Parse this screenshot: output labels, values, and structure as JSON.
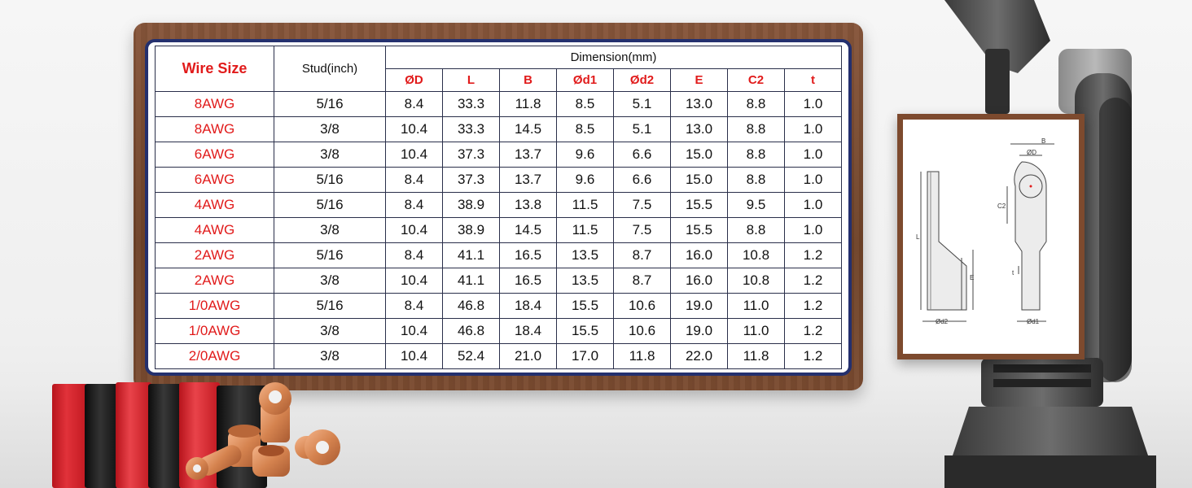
{
  "table": {
    "header": {
      "wire_size": "Wire Size",
      "stud": "Stud(inch)",
      "dimension": "Dimension(mm)",
      "columns": [
        "ØD",
        "L",
        "B",
        "Ød1",
        "Ød2",
        "E",
        "C2",
        "t"
      ]
    },
    "rows": [
      [
        "8AWG",
        "5/16",
        "8.4",
        "33.3",
        "11.8",
        "8.5",
        "5.1",
        "13.0",
        "8.8",
        "1.0"
      ],
      [
        "8AWG",
        "3/8",
        "10.4",
        "33.3",
        "14.5",
        "8.5",
        "5.1",
        "13.0",
        "8.8",
        "1.0"
      ],
      [
        "6AWG",
        "3/8",
        "10.4",
        "37.3",
        "13.7",
        "9.6",
        "6.6",
        "15.0",
        "8.8",
        "1.0"
      ],
      [
        "6AWG",
        "5/16",
        "8.4",
        "37.3",
        "13.7",
        "9.6",
        "6.6",
        "15.0",
        "8.8",
        "1.0"
      ],
      [
        "4AWG",
        "5/16",
        "8.4",
        "38.9",
        "13.8",
        "11.5",
        "7.5",
        "15.5",
        "9.5",
        "1.0"
      ],
      [
        "4AWG",
        "3/8",
        "10.4",
        "38.9",
        "14.5",
        "11.5",
        "7.5",
        "15.5",
        "8.8",
        "1.0"
      ],
      [
        "2AWG",
        "5/16",
        "8.4",
        "41.1",
        "16.5",
        "13.5",
        "8.7",
        "16.0",
        "10.8",
        "1.2"
      ],
      [
        "2AWG",
        "3/8",
        "10.4",
        "41.1",
        "16.5",
        "13.5",
        "8.7",
        "16.0",
        "10.8",
        "1.2"
      ],
      [
        "1/0AWG",
        "5/16",
        "8.4",
        "46.8",
        "18.4",
        "15.5",
        "10.6",
        "19.0",
        "11.0",
        "1.2"
      ],
      [
        "1/0AWG",
        "3/8",
        "10.4",
        "46.8",
        "18.4",
        "15.5",
        "10.6",
        "19.0",
        "11.0",
        "1.2"
      ],
      [
        "2/0AWG",
        "3/8",
        "10.4",
        "52.4",
        "21.0",
        "17.0",
        "11.8",
        "22.0",
        "11.8",
        "1.2"
      ]
    ]
  },
  "diagram": {
    "labels": {
      "B": "B",
      "D": "ØD",
      "C2": "C2",
      "L": "L",
      "E": "E",
      "t": "t",
      "d2": "Ød2",
      "d1": "Ød1"
    }
  },
  "colors": {
    "accent_red": "#e11b1b",
    "panel_border": "#24306e",
    "wood": "#7a4b30",
    "copper": "#d98a5c"
  }
}
